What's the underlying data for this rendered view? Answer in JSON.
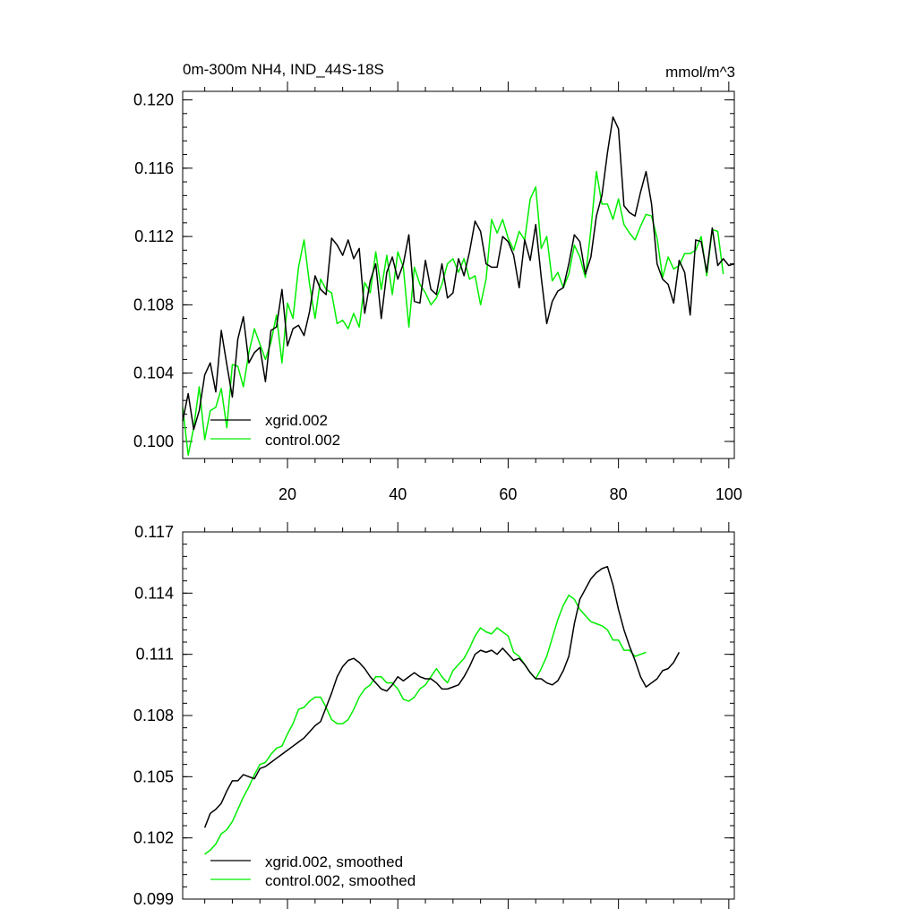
{
  "chart_data": [
    {
      "type": "line",
      "title": "0m-300m NH4, IND_44S-18S",
      "units": "mmol/m^3",
      "xlim": [
        1,
        101
      ],
      "ylim": [
        0.099,
        0.1205
      ],
      "xticks": [
        20,
        40,
        60,
        80,
        100
      ],
      "yticks": [
        0.1,
        0.104,
        0.108,
        0.112,
        0.116,
        0.12
      ],
      "ytick_labels": [
        "0.100",
        "0.104",
        "0.108",
        "0.112",
        "0.116",
        "0.120"
      ],
      "legend_position": "bottom-left",
      "series": [
        {
          "name": "xgrid.002",
          "color": "#000000",
          "values": [
            0.1012,
            0.1028,
            0.1007,
            0.1018,
            0.1039,
            0.1046,
            0.1029,
            0.1065,
            0.1045,
            0.1026,
            0.106,
            0.1073,
            0.1046,
            0.1052,
            0.1055,
            0.1035,
            0.1065,
            0.1067,
            0.1089,
            0.1056,
            0.1066,
            0.1068,
            0.1062,
            0.1076,
            0.1097,
            0.1089,
            0.1086,
            0.1119,
            0.1115,
            0.1109,
            0.1118,
            0.1107,
            0.1113,
            0.1075,
            0.1094,
            0.1104,
            0.1072,
            0.1099,
            0.1108,
            0.1095,
            0.1104,
            0.1121,
            0.1082,
            0.1081,
            0.1106,
            0.1089,
            0.1086,
            0.1104,
            0.1084,
            0.1087,
            0.1107,
            0.1097,
            0.1111,
            0.1129,
            0.1123,
            0.1104,
            0.1102,
            0.1102,
            0.112,
            0.1117,
            0.1109,
            0.109,
            0.1118,
            0.1106,
            0.1127,
            0.1096,
            0.1069,
            0.1082,
            0.1088,
            0.109,
            0.1104,
            0.1121,
            0.1117,
            0.1098,
            0.1108,
            0.1132,
            0.1144,
            0.1169,
            0.119,
            0.1183,
            0.1138,
            0.1134,
            0.1132,
            0.1146,
            0.1158,
            0.1139,
            0.1104,
            0.1095,
            0.1092,
            0.1081,
            0.1106,
            0.1099,
            0.1074,
            0.1118,
            0.1117,
            0.1099,
            0.1125,
            0.1103,
            0.1107,
            0.1103,
            0.1104
          ]
        },
        {
          "name": "control.002",
          "color": "#00ee00",
          "values": [
            0.102,
            0.0992,
            0.1008,
            0.1032,
            0.1001,
            0.1018,
            0.102,
            0.1031,
            0.1008,
            0.1045,
            0.1044,
            0.1032,
            0.1052,
            0.1066,
            0.1057,
            0.1048,
            0.1058,
            0.1074,
            0.1046,
            0.1081,
            0.1072,
            0.1102,
            0.1118,
            0.1092,
            0.1072,
            0.1095,
            0.1089,
            0.1087,
            0.1069,
            0.1071,
            0.1066,
            0.1075,
            0.1067,
            0.1093,
            0.1087,
            0.1111,
            0.1089,
            0.1109,
            0.1086,
            0.1111,
            0.1102,
            0.1067,
            0.1102,
            0.1092,
            0.1087,
            0.108,
            0.1084,
            0.1092,
            0.1104,
            0.1107,
            0.1099,
            0.1107,
            0.1095,
            0.1097,
            0.108,
            0.1095,
            0.113,
            0.1122,
            0.113,
            0.1119,
            0.1112,
            0.1123,
            0.1118,
            0.1142,
            0.1149,
            0.1113,
            0.112,
            0.1094,
            0.1099,
            0.109,
            0.1098,
            0.1115,
            0.1108,
            0.1096,
            0.1124,
            0.1158,
            0.1139,
            0.1139,
            0.113,
            0.1142,
            0.1127,
            0.1122,
            0.1118,
            0.1126,
            0.1133,
            0.1132,
            0.1119,
            0.1096,
            0.1108,
            0.1101,
            0.1103,
            0.111,
            0.111,
            0.1112,
            0.112,
            0.1097,
            0.1124,
            0.1123,
            0.1098
          ]
        }
      ]
    },
    {
      "type": "line",
      "xlim": [
        1,
        101
      ],
      "ylim": [
        0.099,
        0.117
      ],
      "xticks": [
        20,
        40,
        60,
        80,
        100
      ],
      "yticks": [
        0.099,
        0.102,
        0.105,
        0.108,
        0.111,
        0.114,
        0.117
      ],
      "ytick_labels": [
        "0.099",
        "0.102",
        "0.105",
        "0.108",
        "0.111",
        "0.114",
        "0.117"
      ],
      "legend_position": "bottom-left",
      "series": [
        {
          "name": "xgrid.002, smoothed",
          "color": "#000000",
          "x_start": 5,
          "values": [
            0.1025,
            0.1032,
            0.1034,
            0.1037,
            0.1043,
            0.1048,
            0.1048,
            0.1051,
            0.105,
            0.1049,
            0.1054,
            0.1055,
            0.1057,
            0.1059,
            0.1061,
            0.1063,
            0.1065,
            0.1067,
            0.1069,
            0.1072,
            0.1075,
            0.1077,
            0.1084,
            0.1091,
            0.1099,
            0.1104,
            0.1107,
            0.1108,
            0.1106,
            0.1103,
            0.1099,
            0.1096,
            0.1093,
            0.1092,
            0.1095,
            0.1099,
            0.1097,
            0.1099,
            0.1101,
            0.1099,
            0.1098,
            0.1098,
            0.1096,
            0.1093,
            0.1093,
            0.1094,
            0.1095,
            0.1099,
            0.1104,
            0.111,
            0.1112,
            0.1111,
            0.1112,
            0.111,
            0.1113,
            0.111,
            0.1107,
            0.1108,
            0.1105,
            0.1101,
            0.1098,
            0.1098,
            0.1096,
            0.1095,
            0.1097,
            0.1102,
            0.1109,
            0.1125,
            0.1137,
            0.1142,
            0.1147,
            0.115,
            0.1152,
            0.1153,
            0.1144,
            0.1132,
            0.1122,
            0.1114,
            0.1107,
            0.1099,
            0.1094,
            0.1096,
            0.1098,
            0.1102,
            0.1103,
            0.1106,
            0.1111
          ]
        },
        {
          "name": "control.002, smoothed",
          "color": "#00ee00",
          "x_start": 5,
          "values": [
            0.1012,
            0.1014,
            0.1017,
            0.1022,
            0.1024,
            0.1028,
            0.1034,
            0.104,
            0.1045,
            0.1051,
            0.1056,
            0.1057,
            0.1061,
            0.1064,
            0.1065,
            0.1071,
            0.1076,
            0.1083,
            0.1084,
            0.1087,
            0.1089,
            0.1089,
            0.1084,
            0.1078,
            0.1076,
            0.1076,
            0.1078,
            0.1083,
            0.1089,
            0.1093,
            0.1095,
            0.1099,
            0.1099,
            0.1096,
            0.1096,
            0.1093,
            0.1088,
            0.1087,
            0.1089,
            0.1093,
            0.1095,
            0.1099,
            0.1103,
            0.1099,
            0.1096,
            0.1102,
            0.1105,
            0.1108,
            0.1113,
            0.1119,
            0.1123,
            0.1121,
            0.112,
            0.1123,
            0.1121,
            0.1119,
            0.1111,
            0.1109,
            0.1105,
            0.1101,
            0.1098,
            0.1103,
            0.1109,
            0.1118,
            0.1127,
            0.1134,
            0.1139,
            0.1137,
            0.1132,
            0.1129,
            0.1126,
            0.1125,
            0.1124,
            0.1122,
            0.1117,
            0.1117,
            0.1112,
            0.1112,
            0.1109,
            0.111,
            0.1111
          ]
        }
      ]
    }
  ]
}
